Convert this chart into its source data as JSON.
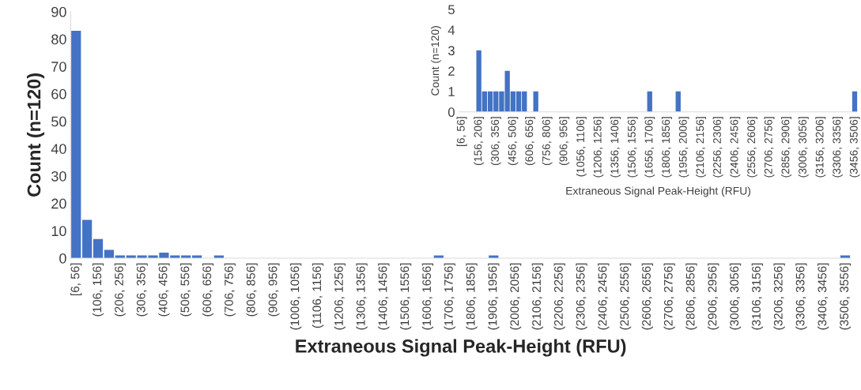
{
  "chart_data": [
    {
      "type": "bar",
      "xlabel": "Extraneous Signal Peak-Height (RFU)",
      "ylabel": "Count (n=120)",
      "categories": [
        "[6, 56]",
        null,
        "(106, 156]",
        null,
        "(206, 256]",
        null,
        "(306, 356]",
        null,
        "(406, 456]",
        null,
        "(506, 556]",
        null,
        "(606, 656]",
        null,
        "(706, 756]",
        null,
        "(806, 856]",
        null,
        "(906, 956]",
        null,
        "(1006, 1056]",
        null,
        "(1106, 1156]",
        null,
        "(1206, 1256]",
        null,
        "(1306, 1356]",
        null,
        "(1406, 1456]",
        null,
        "(1506, 1556]",
        null,
        "(1606, 1656]",
        null,
        "(1706, 1756]",
        null,
        "(1806, 1856]",
        null,
        "(1906, 1956]",
        null,
        "(2006, 2056]",
        null,
        "(2106, 2156]",
        null,
        "(2206, 2256]",
        null,
        "(2306, 2356]",
        null,
        "(2406, 2456]",
        null,
        "(2506, 2556]",
        null,
        "(2606, 2656]",
        null,
        "(2706, 2756]",
        null,
        "(2806, 2856]",
        null,
        "(2906, 2956]",
        null,
        "(3006, 3056]",
        null,
        "(3106, 3156]",
        null,
        "(3206, 3256]",
        null,
        "(3306, 3356]",
        null,
        "(3406, 3456]",
        null,
        "(3506, 3556]"
      ],
      "values": [
        83,
        14,
        7,
        3,
        1,
        1,
        1,
        1,
        2,
        1,
        1,
        1,
        0,
        1,
        0,
        0,
        0,
        0,
        0,
        0,
        0,
        0,
        0,
        0,
        0,
        0,
        0,
        0,
        0,
        0,
        0,
        0,
        0,
        1,
        0,
        0,
        0,
        0,
        1,
        0,
        0,
        0,
        0,
        0,
        0,
        0,
        0,
        0,
        0,
        0,
        0,
        0,
        0,
        0,
        0,
        0,
        0,
        0,
        0,
        0,
        0,
        0,
        0,
        0,
        0,
        0,
        0,
        0,
        0,
        0,
        1
      ],
      "color": "#4472c4",
      "ylim": [
        0,
        90
      ],
      "yticks": [
        0,
        10,
        20,
        30,
        40,
        50,
        60,
        70,
        80,
        90
      ],
      "grid": false,
      "legend": false
    },
    {
      "type": "bar",
      "xlabel": "Extraneous Signal Peak-Height (RFU)",
      "ylabel": "Count (n=120)",
      "categories": [
        "[6, 56]",
        null,
        null,
        "(156, 206]",
        null,
        null,
        "(306, 356]",
        null,
        null,
        "(456, 506]",
        null,
        null,
        "(606, 656]",
        null,
        null,
        "(756, 806]",
        null,
        null,
        "(906, 956]",
        null,
        null,
        "(1056, 1106]",
        null,
        null,
        "(1206, 1256]",
        null,
        null,
        "(1356, 1406]",
        null,
        null,
        "(1506, 1556]",
        null,
        null,
        "(1656, 1706]",
        null,
        null,
        "(1806, 1856]",
        null,
        null,
        "(1956, 2006]",
        null,
        null,
        "(2106, 2156]",
        null,
        null,
        "(2256, 2306]",
        null,
        null,
        "(2406, 2456]",
        null,
        null,
        "(2556, 2606]",
        null,
        null,
        "(2706, 2756]",
        null,
        null,
        "(2856, 2906]",
        null,
        null,
        "(3006, 3056]",
        null,
        null,
        "(3156, 3206]",
        null,
        null,
        "(3306, 3356]",
        null,
        null,
        "(3456, 3506]"
      ],
      "values": [
        null,
        null,
        null,
        3,
        1,
        1,
        1,
        1,
        2,
        1,
        1,
        1,
        0,
        1,
        0,
        0,
        0,
        0,
        0,
        0,
        0,
        0,
        0,
        0,
        0,
        0,
        0,
        0,
        0,
        0,
        0,
        0,
        0,
        1,
        0,
        0,
        0,
        0,
        1,
        0,
        0,
        0,
        0,
        0,
        0,
        0,
        0,
        0,
        0,
        0,
        0,
        0,
        0,
        0,
        0,
        0,
        0,
        0,
        0,
        0,
        0,
        0,
        0,
        0,
        0,
        0,
        0,
        0,
        0,
        1
      ],
      "color": "#4472c4",
      "ylim": [
        0,
        5
      ],
      "yticks": [
        0,
        1,
        2,
        3,
        4,
        5
      ],
      "grid": false,
      "legend": false
    }
  ]
}
